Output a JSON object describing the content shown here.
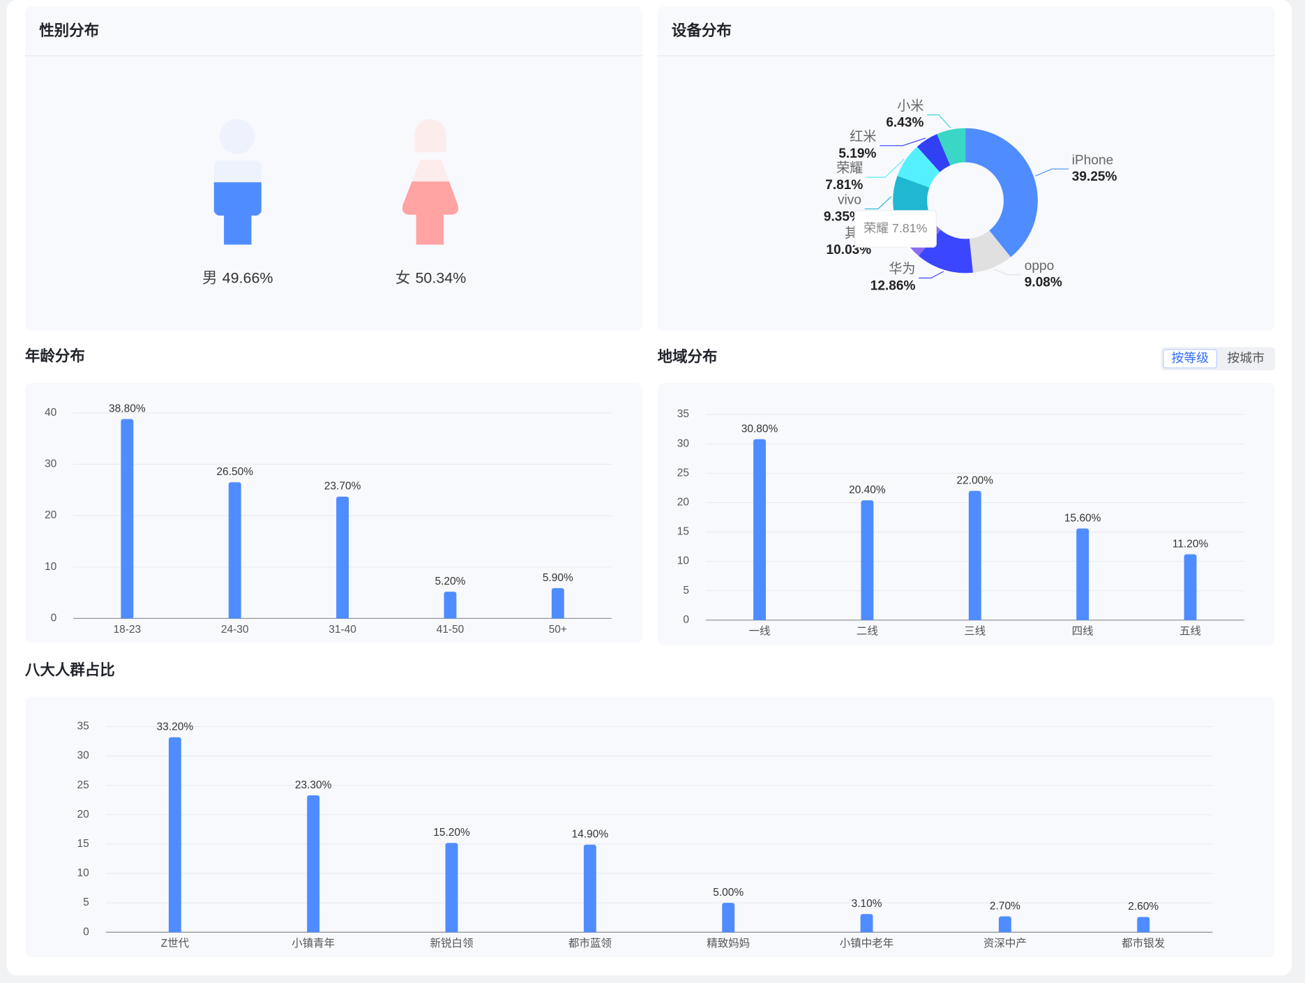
{
  "chart_data": [
    {
      "type": "pictogram",
      "title": "性别分布",
      "categories": [
        "男",
        "女"
      ],
      "values": [
        49.66,
        50.34
      ],
      "value_labels": [
        "49.66%",
        "50.34%"
      ],
      "colors": [
        "#4f8cff",
        "#ffa3a3"
      ],
      "light_colors": [
        "#edf2fd",
        "#fdecec"
      ]
    },
    {
      "type": "donut",
      "title": "设备分布",
      "categories": [
        "iPhone",
        "oppo",
        "华为",
        "其他",
        "vivo",
        "荣耀",
        "红米",
        "小米"
      ],
      "values": [
        39.25,
        9.08,
        12.86,
        10.03,
        9.35,
        7.81,
        5.19,
        6.43
      ],
      "value_labels": [
        "39.25%",
        "9.08%",
        "12.86%",
        "10.03%",
        "9.35%",
        "7.81%",
        "5.19%",
        "6.43%"
      ],
      "colors": [
        "#4f8cff",
        "#e0e0e0",
        "#3a46ff",
        "#8a6cf0",
        "#1fb7d2",
        "#55f0ff",
        "#3140f5",
        "#3ad7c6"
      ],
      "tooltip": "荣耀 7.81%"
    },
    {
      "type": "bar",
      "title": "年龄分布",
      "categories": [
        "18-23",
        "24-30",
        "31-40",
        "41-50",
        "50+"
      ],
      "values": [
        38.8,
        26.5,
        23.7,
        5.2,
        5.9
      ],
      "value_labels": [
        "38.80%",
        "26.50%",
        "23.70%",
        "5.20%",
        "5.90%"
      ],
      "color": "#4f8cff",
      "ylim": [
        0,
        40
      ],
      "yticks": [
        0,
        10,
        20,
        30,
        40
      ],
      "grid": true
    },
    {
      "type": "bar",
      "title": "地域分布",
      "toggle": [
        "按等级",
        "按城市"
      ],
      "categories": [
        "一线",
        "二线",
        "三线",
        "四线",
        "五线"
      ],
      "values": [
        30.8,
        20.4,
        22.0,
        15.6,
        11.2
      ],
      "value_labels": [
        "30.80%",
        "20.40%",
        "22.00%",
        "15.60%",
        "11.20%"
      ],
      "color": "#4f8cff",
      "ylim": [
        0,
        35
      ],
      "yticks": [
        0,
        5,
        10,
        15,
        20,
        25,
        30,
        35
      ],
      "grid": true
    },
    {
      "type": "bar",
      "title": "八大人群占比",
      "categories": [
        "Z世代",
        "小镇青年",
        "新锐白领",
        "都市蓝领",
        "精致妈妈",
        "小镇中老年",
        "资深中产",
        "都市银发"
      ],
      "values": [
        33.2,
        23.3,
        15.2,
        14.9,
        5.0,
        3.1,
        2.7,
        2.6
      ],
      "value_labels": [
        "33.20%",
        "23.30%",
        "15.20%",
        "14.90%",
        "5.00%",
        "3.10%",
        "2.70%",
        "2.60%"
      ],
      "color": "#4f8cff",
      "ylim": [
        0,
        35
      ],
      "yticks": [
        0,
        5,
        10,
        15,
        20,
        25,
        30,
        35
      ],
      "grid": true
    }
  ]
}
